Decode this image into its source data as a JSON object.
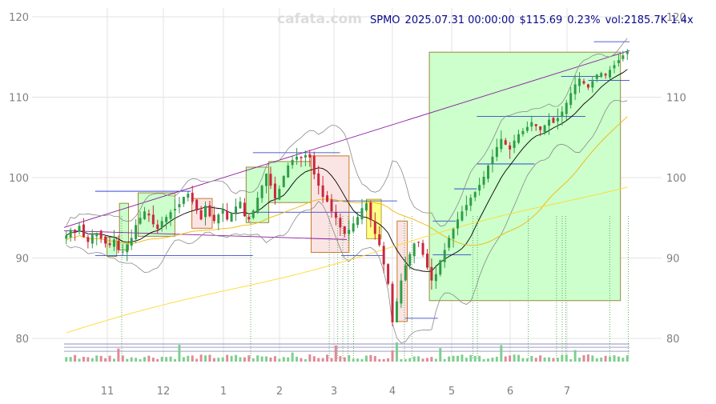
{
  "header": {
    "symbol": "SPMO",
    "datetime": "2025.07.31 00:00:00",
    "price": "$115.69",
    "change": "0.23%",
    "volume": "vol:2185.7K 1.4x"
  },
  "watermark": "cafata.com",
  "colors": {
    "up": "#2e9e46",
    "down": "#c8283c",
    "box_up_fill": "#ccffcc",
    "box_down_fill": "#fbe4e4",
    "box_yellow_fill": "#ffff88",
    "sma_short": "#000000",
    "sma_mid": "#f2b705",
    "sma_long": "#ffd92f",
    "bollinger": "#8a8a8a",
    "trendline": "#8a1a9e",
    "level": "#1a2cc8"
  },
  "chart_data": {
    "type": "candlestick",
    "x_tick_labels": [
      "11",
      "12",
      "1",
      "2",
      "3",
      "4",
      "5",
      "6",
      "7"
    ],
    "y_tick_labels": [
      "80",
      "90",
      "100",
      "110",
      "120"
    ],
    "ylim": [
      77,
      121
    ],
    "grid": true,
    "closes": [
      92.8,
      93.5,
      93.2,
      94.0,
      92.6,
      92.0,
      92.9,
      93.1,
      92.4,
      91.8,
      91.6,
      92.3,
      91.0,
      90.8,
      91.7,
      92.5,
      94.1,
      95.0,
      95.8,
      95.3,
      94.2,
      93.6,
      94.6,
      95.1,
      95.7,
      96.1,
      96.7,
      97.6,
      98.0,
      97.0,
      95.9,
      94.8,
      96.5,
      95.2,
      94.6,
      95.4,
      96.0,
      94.8,
      95.6,
      96.4,
      97.0,
      95.2,
      94.8,
      95.9,
      97.5,
      99.0,
      100.5,
      99.0,
      97.4,
      98.6,
      100.2,
      101.5,
      102.2,
      102.6,
      102.4,
      102.8,
      102.5,
      100.4,
      99.0,
      97.6,
      97.0,
      95.8,
      95.0,
      93.8,
      93.0,
      93.5,
      94.3,
      95.1,
      96.2,
      96.8,
      94.7,
      93.0,
      91.6,
      89.2,
      86.8,
      82.0,
      84.6,
      87.2,
      89.1,
      90.5,
      91.8,
      92.0,
      90.4,
      88.8,
      87.2,
      88.0,
      89.7,
      91.0,
      92.5,
      93.6,
      94.8,
      95.8,
      96.6,
      97.5,
      98.2,
      99.1,
      100.1,
      101.5,
      102.6,
      103.8,
      104.8,
      104.1,
      103.5,
      104.6,
      105.4,
      105.8,
      106.3,
      106.9,
      106.4,
      105.9,
      106.5,
      107.2,
      106.8,
      107.4,
      108.2,
      109.3,
      110.5,
      111.6,
      112.3,
      111.7,
      111.2,
      112.0,
      112.8,
      113.0,
      112.7,
      113.4,
      114.0,
      114.6,
      115.2,
      115.69
    ],
    "volume_indicator_lines": [
      78.4,
      78.9,
      79.3
    ],
    "series_note_colors": [
      "sma_short",
      "sma_mid",
      "sma_long",
      "bollinger"
    ],
    "consolidation_boxes": [
      {
        "x0": 0.076,
        "x1": 0.093,
        "y0": 90.2,
        "y1": 92.6,
        "kind": "up"
      },
      {
        "x0": 0.098,
        "x1": 0.114,
        "y0": 91.0,
        "y1": 96.8,
        "kind": "up"
      },
      {
        "x0": 0.131,
        "x1": 0.196,
        "y0": 92.7,
        "y1": 98.1,
        "kind": "up"
      },
      {
        "x0": 0.226,
        "x1": 0.262,
        "y0": 93.7,
        "y1": 97.4,
        "kind": "down"
      },
      {
        "x0": 0.322,
        "x1": 0.362,
        "y0": 94.4,
        "y1": 101.3,
        "kind": "up"
      },
      {
        "x0": 0.362,
        "x1": 0.437,
        "y0": 96.9,
        "y1": 102.0,
        "kind": "up"
      },
      {
        "x0": 0.437,
        "x1": 0.504,
        "y0": 90.7,
        "y1": 102.7,
        "kind": "down"
      },
      {
        "x0": 0.535,
        "x1": 0.561,
        "y0": 92.4,
        "y1": 97.3,
        "kind": "yellow"
      },
      {
        "x0": 0.589,
        "x1": 0.607,
        "y0": 82.1,
        "y1": 94.6,
        "kind": "down"
      },
      {
        "x0": 0.646,
        "x1": 0.984,
        "y0": 84.7,
        "y1": 115.6,
        "kind": "up"
      }
    ],
    "level_lines": [
      {
        "x0": 0.055,
        "x1": 0.224,
        "y": 98.3
      },
      {
        "x0": 0.055,
        "x1": 0.334,
        "y": 90.3
      },
      {
        "x0": 0.334,
        "x1": 0.488,
        "y": 103.1
      },
      {
        "x0": 0.334,
        "x1": 0.529,
        "y": 95.7
      },
      {
        "x0": 0.474,
        "x1": 0.589,
        "y": 97.1
      },
      {
        "x0": 0.49,
        "x1": 0.564,
        "y": 90.3
      },
      {
        "x0": 0.603,
        "x1": 0.661,
        "y": 82.5
      },
      {
        "x0": 0.652,
        "x1": 0.693,
        "y": 94.6
      },
      {
        "x0": 0.652,
        "x1": 0.72,
        "y": 90.4
      },
      {
        "x0": 0.69,
        "x1": 0.73,
        "y": 98.6
      },
      {
        "x0": 0.73,
        "x1": 0.832,
        "y": 101.7
      },
      {
        "x0": 0.73,
        "x1": 0.922,
        "y": 107.6
      },
      {
        "x0": 0.879,
        "x1": 0.951,
        "y": 112.6
      },
      {
        "x0": 0.927,
        "x1": 1.0,
        "y": 112.1
      },
      {
        "x0": 0.937,
        "x1": 1.0,
        "y": 116.9
      }
    ],
    "trendlines": [
      {
        "from": [
          0.0,
          93.8
        ],
        "to": [
          1.0,
          115.8
        ]
      },
      {
        "from": [
          0.0,
          93.4
        ],
        "to": [
          0.5,
          92.3
        ]
      }
    ],
    "event_markers": [
      0.102,
      0.33,
      0.469,
      0.484,
      0.493,
      0.502,
      0.512,
      0.602,
      0.615,
      0.723,
      0.731,
      0.821,
      0.871,
      0.881,
      0.887,
      0.965,
      0.998
    ]
  }
}
